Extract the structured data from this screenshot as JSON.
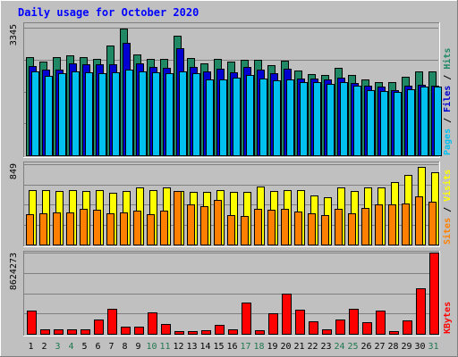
{
  "chart_data": {
    "type": "bar",
    "title": "Daily usage for October 2020",
    "colors": {
      "background": "#c0c0c0",
      "panel": "#c0c0c0",
      "title": "#0000ff",
      "hits": "#218866",
      "files": "#0000d0",
      "pages": "#00c0f0",
      "visits": "#ffff00",
      "sites": "#ff8000",
      "kbytes": "#ff0000",
      "weekend_label": "#207850",
      "weekday_label": "#000000"
    },
    "categories": [
      "1",
      "2",
      "3",
      "4",
      "5",
      "6",
      "7",
      "8",
      "9",
      "10",
      "11",
      "12",
      "13",
      "14",
      "15",
      "16",
      "17",
      "18",
      "19",
      "20",
      "21",
      "22",
      "23",
      "24",
      "25",
      "26",
      "27",
      "28",
      "29",
      "30",
      "31"
    ],
    "weekend_days": [
      "3",
      "4",
      "10",
      "11",
      "17",
      "18",
      "24",
      "25",
      "31"
    ],
    "panels": [
      {
        "name": "hits-files-pages",
        "ymax_label": "3345",
        "ymax": 3345,
        "right_label_parts": [
          {
            "text": "Pages",
            "color": "#00c0f0"
          },
          {
            "text": " / ",
            "color": "#000000"
          },
          {
            "text": "Files",
            "color": "#0000d0"
          },
          {
            "text": " / ",
            "color": "#000000"
          },
          {
            "text": "Hits",
            "color": "#218866"
          }
        ],
        "series": [
          {
            "name": "Hits",
            "values": [
              2570,
              2460,
              2570,
              2630,
              2570,
              2520,
              2880,
              3330,
              2650,
              2530,
              2530,
              3130,
              2560,
              2420,
              2530,
              2450,
              2500,
              2500,
              2360,
              2480,
              2220,
              2140,
              2110,
              2300,
              2110,
              1990,
              1910,
              1910,
              2060,
              2200,
              2200
            ]
          },
          {
            "name": "Files",
            "values": [
              2330,
              2240,
              2250,
              2400,
              2380,
              2390,
              2380,
              2940,
              2420,
              2310,
              2290,
              2800,
              2320,
              2200,
              2270,
              2180,
              2310,
              2240,
              2160,
              2270,
              2010,
              2010,
              1990,
              2030,
              1890,
              1820,
              1790,
              1700,
              1830,
              1850,
              1820
            ]
          },
          {
            "name": "Pages",
            "values": [
              2190,
              2090,
              2150,
              2200,
              2180,
              2160,
              2180,
              2240,
              2210,
              2170,
              2150,
              2200,
              2150,
              1980,
              1990,
              2040,
              2110,
              2000,
              1970,
              1980,
              1920,
              1910,
              1870,
              1920,
              1820,
              1710,
              1680,
              1670,
              1720,
              1790,
              1800
            ]
          }
        ]
      },
      {
        "name": "visits-sites",
        "ymax_label": "849",
        "ymax": 849,
        "right_label_parts": [
          {
            "text": "Sites",
            "color": "#ff8000"
          },
          {
            "text": " / ",
            "color": "#000000"
          },
          {
            "text": "Visits",
            "color": "#ffff00"
          }
        ],
        "series": [
          {
            "name": "Visits",
            "values": [
              580,
              580,
              570,
              580,
              570,
              580,
              550,
              570,
              600,
              580,
              600,
              570,
              560,
              560,
              580,
              560,
              560,
              610,
              570,
              580,
              580,
              520,
              500,
              600,
              570,
              600,
              600,
              660,
              740,
              820,
              760
            ]
          },
          {
            "name": "Sites",
            "values": [
              320,
              330,
              340,
              340,
              380,
              370,
              330,
              340,
              360,
              320,
              360,
              570,
              420,
              410,
              470,
              310,
              300,
              380,
              370,
              380,
              350,
              330,
              310,
              380,
              330,
              390,
              420,
              420,
              430,
              510,
              450
            ]
          }
        ]
      },
      {
        "name": "kbytes",
        "ymax_label": "8624273",
        "ymax": 8624273,
        "right_label_parts": [
          {
            "text": "KBytes",
            "color": "#ff0000"
          }
        ],
        "series": [
          {
            "name": "KBytes",
            "values": [
              2450000,
              450000,
              500000,
              500000,
              500000,
              1550000,
              2700000,
              800000,
              750000,
              2250000,
              1050000,
              300000,
              300000,
              350000,
              950000,
              500000,
              3350000,
              400000,
              2150000,
              4250000,
              2550000,
              1350000,
              450000,
              1550000,
              2650000,
              1250000,
              2500000,
              250000,
              1450000,
              4800000,
              8624273
            ]
          }
        ]
      }
    ]
  }
}
